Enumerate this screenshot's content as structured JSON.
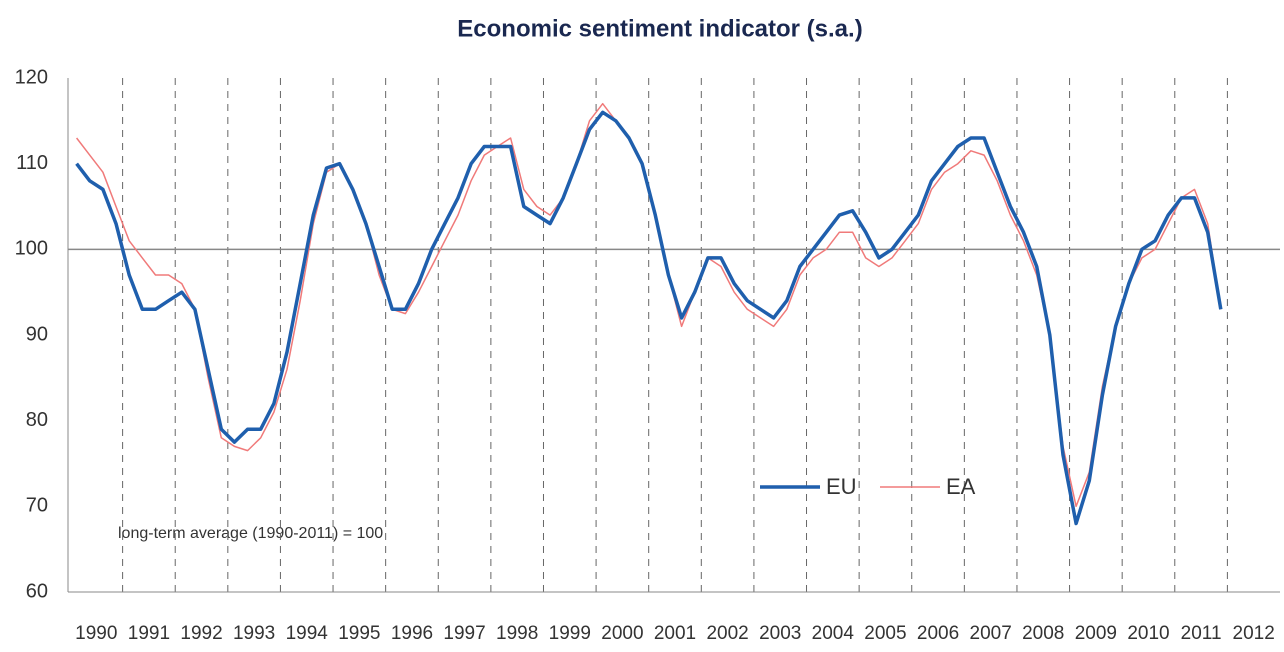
{
  "chart_data": {
    "type": "line",
    "title": "Economic sentiment indicator (s.a.)",
    "annotation": "long-term average (1990-2011) = 100",
    "hline": 100,
    "xlim": [
      1990,
      2013
    ],
    "xticks": [
      1990,
      1991,
      1992,
      1993,
      1994,
      1995,
      1996,
      1997,
      1998,
      1999,
      2000,
      2001,
      2002,
      2003,
      2004,
      2005,
      2006,
      2007,
      2008,
      2009,
      2010,
      2011,
      2012
    ],
    "ylim": [
      60,
      120
    ],
    "yticks": [
      60,
      70,
      80,
      90,
      100,
      110,
      120
    ],
    "grid": true,
    "x": [
      1990.125,
      1990.375,
      1990.625,
      1990.875,
      1991.125,
      1991.375,
      1991.625,
      1991.875,
      1992.125,
      1992.375,
      1992.625,
      1992.875,
      1993.125,
      1993.375,
      1993.625,
      1993.875,
      1994.125,
      1994.375,
      1994.625,
      1994.875,
      1995.125,
      1995.375,
      1995.625,
      1995.875,
      1996.125,
      1996.375,
      1996.625,
      1996.875,
      1997.125,
      1997.375,
      1997.625,
      1997.875,
      1998.125,
      1998.375,
      1998.625,
      1998.875,
      1999.125,
      1999.375,
      1999.625,
      1999.875,
      2000.125,
      2000.375,
      2000.625,
      2000.875,
      2001.125,
      2001.375,
      2001.625,
      2001.875,
      2002.125,
      2002.375,
      2002.625,
      2002.875,
      2003.125,
      2003.375,
      2003.625,
      2003.875,
      2004.125,
      2004.375,
      2004.625,
      2004.875,
      2005.125,
      2005.375,
      2005.625,
      2005.875,
      2006.125,
      2006.375,
      2006.625,
      2006.875,
      2007.125,
      2007.375,
      2007.625,
      2007.875,
      2008.125,
      2008.375,
      2008.625,
      2008.875,
      2009.125,
      2009.375,
      2009.625,
      2009.875,
      2010.125,
      2010.375,
      2010.625,
      2010.875,
      2011.125,
      2011.375,
      2011.625,
      2011.875
    ],
    "series": [
      {
        "name": "EU",
        "color": "#1f5fad",
        "values": [
          110,
          108,
          107,
          103,
          97,
          93,
          93,
          94,
          95,
          93,
          86,
          79,
          77.5,
          79,
          79,
          82,
          88,
          96,
          104,
          109.5,
          110,
          107,
          103,
          98,
          93,
          93,
          96,
          100,
          103,
          106,
          110,
          112,
          112,
          112,
          105,
          104,
          103,
          106,
          110,
          114,
          116,
          115,
          113,
          110,
          104,
          97,
          92,
          95,
          99,
          99,
          96,
          94,
          93,
          92,
          94,
          98,
          100,
          102,
          104,
          104.5,
          102,
          99,
          100,
          102,
          104,
          108,
          110,
          112,
          113,
          113,
          109,
          105,
          102,
          98,
          90,
          76,
          68,
          73,
          83,
          91,
          96,
          100,
          101,
          104,
          106,
          106,
          102,
          93
        ]
      },
      {
        "name": "EA",
        "color": "#f07a7a",
        "values": [
          113,
          111,
          109,
          105,
          101,
          99,
          97,
          97,
          96,
          93,
          85,
          78,
          77,
          76.5,
          78,
          81,
          86,
          94,
          103,
          109,
          110,
          107,
          103,
          97,
          93,
          92.5,
          95,
          98,
          101,
          104,
          108,
          111,
          112,
          113,
          107,
          105,
          104,
          106,
          110,
          115,
          117,
          115,
          113,
          110,
          104,
          97,
          91,
          95,
          99,
          98,
          95,
          93,
          92,
          91,
          93,
          97,
          99,
          100,
          102,
          102,
          99,
          98,
          99,
          101,
          103,
          107,
          109,
          110,
          111.5,
          111,
          108,
          104,
          101,
          97,
          90,
          77,
          70,
          74,
          84,
          91,
          96,
          99,
          100,
          103,
          106,
          107,
          103,
          93
        ]
      }
    ]
  }
}
